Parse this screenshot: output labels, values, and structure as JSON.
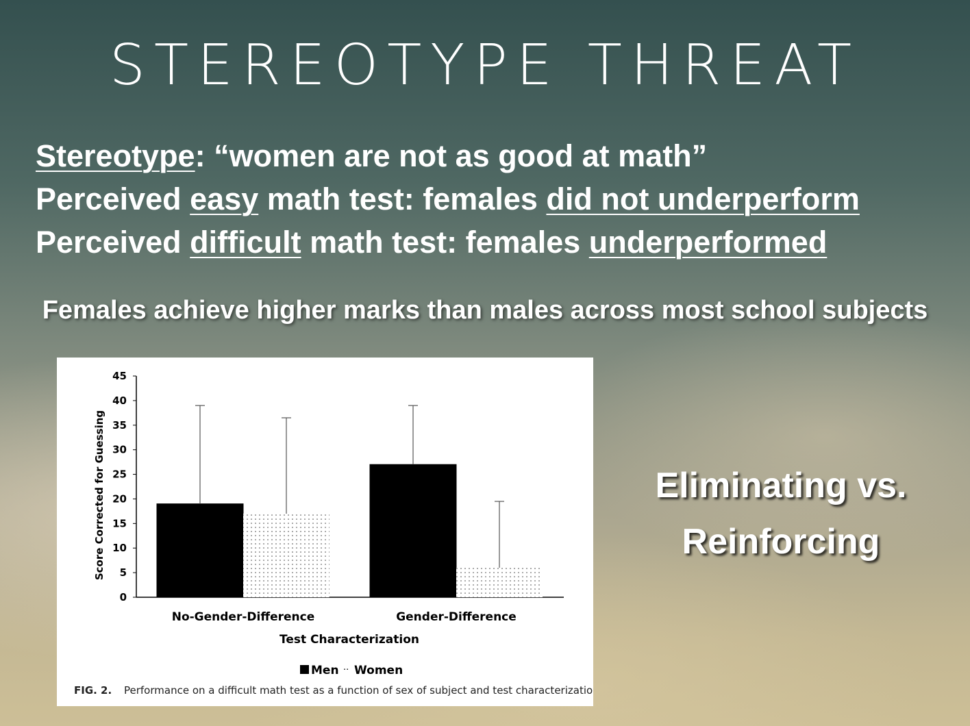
{
  "slide": {
    "title": "STEREOTYPE THREAT",
    "line1": {
      "a": "Stereotype",
      "b": ": “women are not as good at math”"
    },
    "line2": {
      "a": "Perceived ",
      "b": "easy",
      "c": " math test: females ",
      "d": "did not underperform"
    },
    "line3": {
      "a": "Perceived ",
      "b": "difficult",
      "c": " math test: females ",
      "d": "underperformed"
    },
    "subtitle": "Females achieve higher marks than males across most school subjects",
    "side_text_1": "Eliminating vs.",
    "side_text_2": "Reinforcing"
  },
  "figure": {
    "caption_label": "FIG. 2.",
    "caption_text": "Performance on a difficult math test as a function of sex of subject and test characterization"
  },
  "chart_data": {
    "type": "bar",
    "categories": [
      "No-Gender-Difference",
      "Gender-Difference"
    ],
    "series": [
      {
        "name": "Men",
        "values": [
          19,
          27
        ],
        "error_upper": [
          39,
          39
        ],
        "fill": "#000000"
      },
      {
        "name": "Women",
        "values": [
          17,
          6
        ],
        "error_upper": [
          36.5,
          19.5
        ],
        "fill": "dotted"
      }
    ],
    "xlabel": "Test Characterization",
    "ylabel": "Score Corrected for Guessing",
    "ylim": [
      0,
      45
    ],
    "yticks": [
      0,
      5,
      10,
      15,
      20,
      25,
      30,
      35,
      40,
      45
    ],
    "legend_position": "bottom",
    "grid": false
  }
}
